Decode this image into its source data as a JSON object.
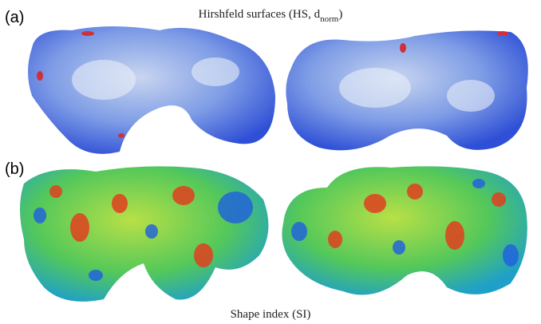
{
  "panels": [
    {
      "label": "(a)",
      "title": {
        "text": "Hirshfeld surfaces (HS, d",
        "subscript": "norm",
        "suffix": ")"
      }
    },
    {
      "label": "(b)",
      "title": {
        "text": "Shape index (SI)"
      }
    }
  ]
}
